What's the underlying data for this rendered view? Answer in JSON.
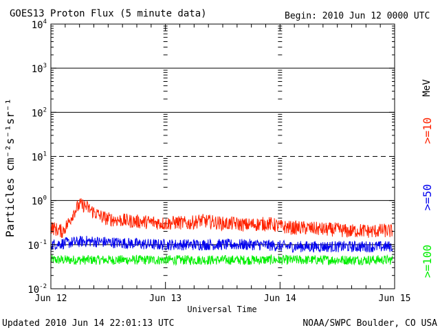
{
  "chart_data": {
    "type": "line",
    "title": "GOES13 Proton Flux (5 minute data)",
    "begin_label": "Begin: 2010 Jun 12 0000 UTC",
    "xlabel": "Universal Time",
    "ylabel": "Particles cm⁻²s⁻¹sr⁻¹",
    "yscale": "log",
    "ylim": [
      0.01,
      10000
    ],
    "xlim_days": [
      0,
      3
    ],
    "x_tick_labels": [
      "Jun 12",
      "Jun 13",
      "Jun 14",
      "Jun 15"
    ],
    "y_tick_labels": [
      {
        "base": "10",
        "exp": "4",
        "value": 10000
      },
      {
        "base": "10",
        "exp": "3",
        "value": 1000
      },
      {
        "base": "10",
        "exp": "2",
        "value": 100
      },
      {
        "base": "10",
        "exp": "1",
        "value": 10
      },
      {
        "base": "10",
        "exp": "0",
        "value": 1
      },
      {
        "base": "10",
        "exp": "-1",
        "value": 0.1
      },
      {
        "base": "10",
        "exp": "-2",
        "value": 0.01
      }
    ],
    "threshold_lines": [
      {
        "value": 1000,
        "style": "solid"
      },
      {
        "value": 100,
        "style": "solid"
      },
      {
        "value": 10,
        "style": "dashed"
      },
      {
        "value": 1,
        "style": "solid"
      },
      {
        "value": 0.1,
        "style": "solid"
      }
    ],
    "unit_label": "MeV",
    "series": [
      {
        "name": ">=10",
        "color": "#ff2200",
        "x_days": [
          0,
          0.05,
          0.1,
          0.15,
          0.2,
          0.25,
          0.3,
          0.35,
          0.4,
          0.45,
          0.5,
          0.6,
          0.7,
          0.8,
          0.9,
          1.0,
          1.1,
          1.2,
          1.3,
          1.4,
          1.5,
          1.6,
          1.7,
          1.8,
          1.9,
          2.0,
          2.1,
          2.2,
          2.3,
          2.4,
          2.5,
          2.6,
          2.7,
          2.8,
          2.9,
          2.98
        ],
        "values": [
          0.25,
          0.22,
          0.2,
          0.3,
          0.55,
          0.8,
          0.75,
          0.6,
          0.5,
          0.42,
          0.38,
          0.36,
          0.34,
          0.33,
          0.32,
          0.3,
          0.32,
          0.3,
          0.35,
          0.33,
          0.3,
          0.3,
          0.28,
          0.29,
          0.3,
          0.26,
          0.24,
          0.24,
          0.23,
          0.22,
          0.22,
          0.2,
          0.21,
          0.2,
          0.21,
          0.2
        ]
      },
      {
        "name": ">=50",
        "color": "#0000ee",
        "x_days": [
          0,
          0.3,
          0.6,
          0.9,
          1.2,
          1.5,
          1.8,
          2.1,
          2.4,
          2.7,
          2.98
        ],
        "values": [
          0.1,
          0.12,
          0.11,
          0.1,
          0.1,
          0.1,
          0.1,
          0.09,
          0.09,
          0.09,
          0.09
        ]
      },
      {
        "name": ">=100",
        "color": "#00ee00",
        "x_days": [
          0,
          0.5,
          1.0,
          1.5,
          2.0,
          2.5,
          2.98
        ],
        "values": [
          0.045,
          0.045,
          0.045,
          0.045,
          0.045,
          0.045,
          0.045
        ]
      }
    ]
  },
  "footer": {
    "updated": "Updated 2010 Jun 14 22:01:13 UTC",
    "credit": "NOAA/SWPC Boulder, CO USA"
  }
}
